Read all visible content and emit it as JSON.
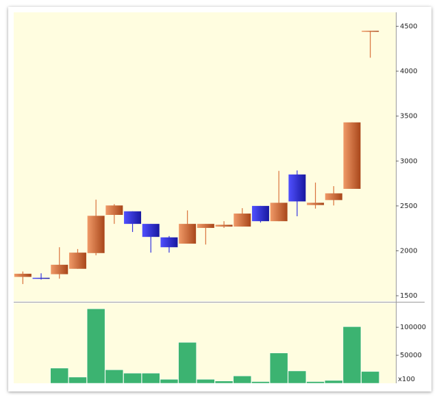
{
  "chart_data": [
    {
      "type": "candlestick",
      "open": [
        1710,
        1700,
        1740,
        1800,
        1975,
        2400,
        2440,
        2300,
        2150,
        2080,
        2255,
        2270,
        2270,
        2500,
        2330,
        2850,
        2510,
        2565,
        2690,
        4450
      ],
      "high": [
        1770,
        1750,
        2040,
        2020,
        2570,
        2520,
        2440,
        2300,
        2165,
        2450,
        2300,
        2330,
        2475,
        2500,
        2890,
        2895,
        2760,
        2720,
        3430,
        4450
      ],
      "low": [
        1630,
        1680,
        1690,
        1800,
        1950,
        2300,
        2210,
        1980,
        1980,
        2080,
        2070,
        2255,
        2270,
        2315,
        2330,
        2385,
        2470,
        2505,
        2690,
        4150
      ],
      "close": [
        1745,
        1690,
        1845,
        1980,
        2390,
        2505,
        2300,
        2155,
        2040,
        2300,
        2300,
        2290,
        2415,
        2330,
        2535,
        2550,
        2535,
        2640,
        3430,
        4450
      ],
      "up_color": "#d8703a",
      "down_color": "#3030e0",
      "ylim": [
        1440,
        4640
      ],
      "yticks": [
        1500,
        2000,
        2500,
        3000,
        3500,
        4000,
        4500
      ]
    },
    {
      "type": "bar",
      "values": [
        0,
        0,
        27000,
        11000,
        133000,
        24000,
        18000,
        18000,
        7000,
        73000,
        7000,
        4000,
        13000,
        3000,
        54000,
        22000,
        3000,
        5000,
        101000,
        21000
      ],
      "color": "#3cb371",
      "ylim": [
        0,
        143000
      ],
      "yticks": [
        50000,
        100000
      ],
      "unit_label": "x100"
    }
  ]
}
